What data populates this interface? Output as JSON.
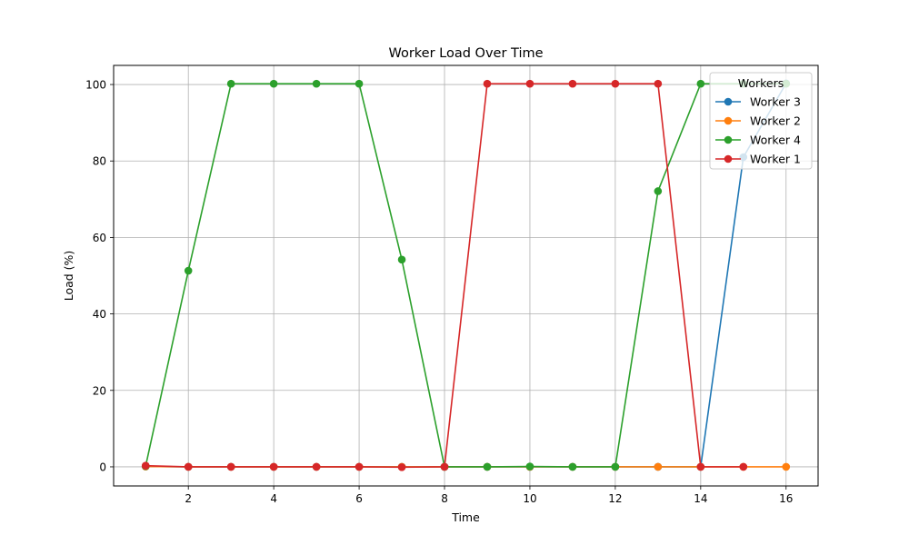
{
  "chart_data": {
    "type": "line",
    "title": "Worker Load Over Time",
    "xlabel": "Time",
    "ylabel": "Load (%)",
    "xlim": [
      0.25,
      16.75
    ],
    "ylim": [
      -5,
      105
    ],
    "xticks": [
      2,
      4,
      6,
      8,
      10,
      12,
      14,
      16
    ],
    "yticks": [
      0,
      20,
      40,
      60,
      80,
      100
    ],
    "grid": true,
    "legend": {
      "title": "Workers",
      "placement": "top-right"
    },
    "x": [
      1,
      2,
      3,
      4,
      5,
      6,
      7,
      8,
      9,
      10,
      11,
      12,
      13,
      14,
      15,
      16
    ],
    "series": [
      {
        "name": "Worker 3",
        "color": "#1f77b4",
        "values": [
          0.1,
          0,
          0,
          0,
          0,
          0,
          0,
          0,
          0,
          0,
          0,
          0,
          0,
          0,
          81,
          100.3
        ]
      },
      {
        "name": "Worker 2",
        "color": "#ff7f0e",
        "values": [
          0.1,
          0,
          0,
          0,
          0,
          0,
          0,
          0,
          0,
          0,
          0,
          0,
          0,
          0,
          0,
          0
        ]
      },
      {
        "name": "Worker 4",
        "color": "#2ca02c",
        "values": [
          0.2,
          51.3,
          100.2,
          100.2,
          100.2,
          100.2,
          54.2,
          0,
          0,
          0.1,
          0,
          0,
          72.1,
          100.2,
          100.2,
          100.2
        ]
      },
      {
        "name": "Worker 1",
        "color": "#d62728",
        "values": [
          0.3,
          0,
          0,
          0,
          0,
          0,
          -0.1,
          0,
          100.2,
          100.2,
          100.2,
          100.2,
          100.2,
          0,
          0,
          null
        ]
      }
    ]
  }
}
